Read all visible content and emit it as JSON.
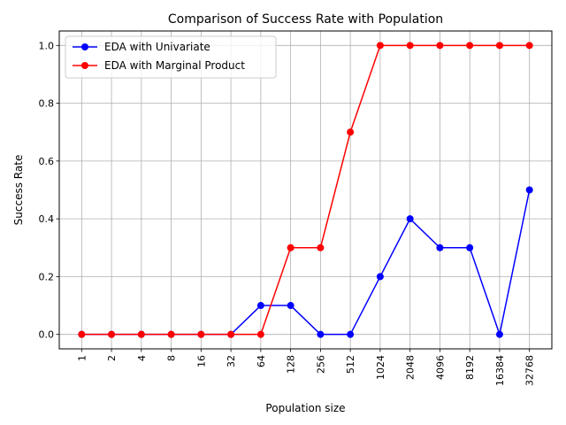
{
  "chart_data": {
    "type": "line",
    "title": "Comparison of Success Rate with Population",
    "xlabel": "Population size",
    "ylabel": "Success Rate",
    "categories": [
      "1",
      "2",
      "4",
      "8",
      "16",
      "32",
      "64",
      "128",
      "256",
      "512",
      "1024",
      "2048",
      "4096",
      "8192",
      "16384",
      "32768"
    ],
    "ylim": [
      -0.05,
      1.05
    ],
    "yticks": [
      "0.0",
      "0.2",
      "0.4",
      "0.6",
      "0.8",
      "1.0"
    ],
    "grid": true,
    "legend_position": "top-left",
    "series": [
      {
        "name": "EDA with Univariate",
        "color": "#0000ff",
        "marker": "circle",
        "values": [
          0,
          0,
          0,
          0,
          0,
          0,
          0.1,
          0.1,
          0,
          0,
          0.2,
          0.4,
          0.3,
          0.3,
          0,
          0.5
        ]
      },
      {
        "name": "EDA with Marginal Product",
        "color": "#ff0000",
        "marker": "circle",
        "values": [
          0,
          0,
          0,
          0,
          0,
          0,
          0,
          0.3,
          0.3,
          0.7,
          1.0,
          1.0,
          1.0,
          1.0,
          1.0,
          1.0
        ]
      }
    ]
  }
}
